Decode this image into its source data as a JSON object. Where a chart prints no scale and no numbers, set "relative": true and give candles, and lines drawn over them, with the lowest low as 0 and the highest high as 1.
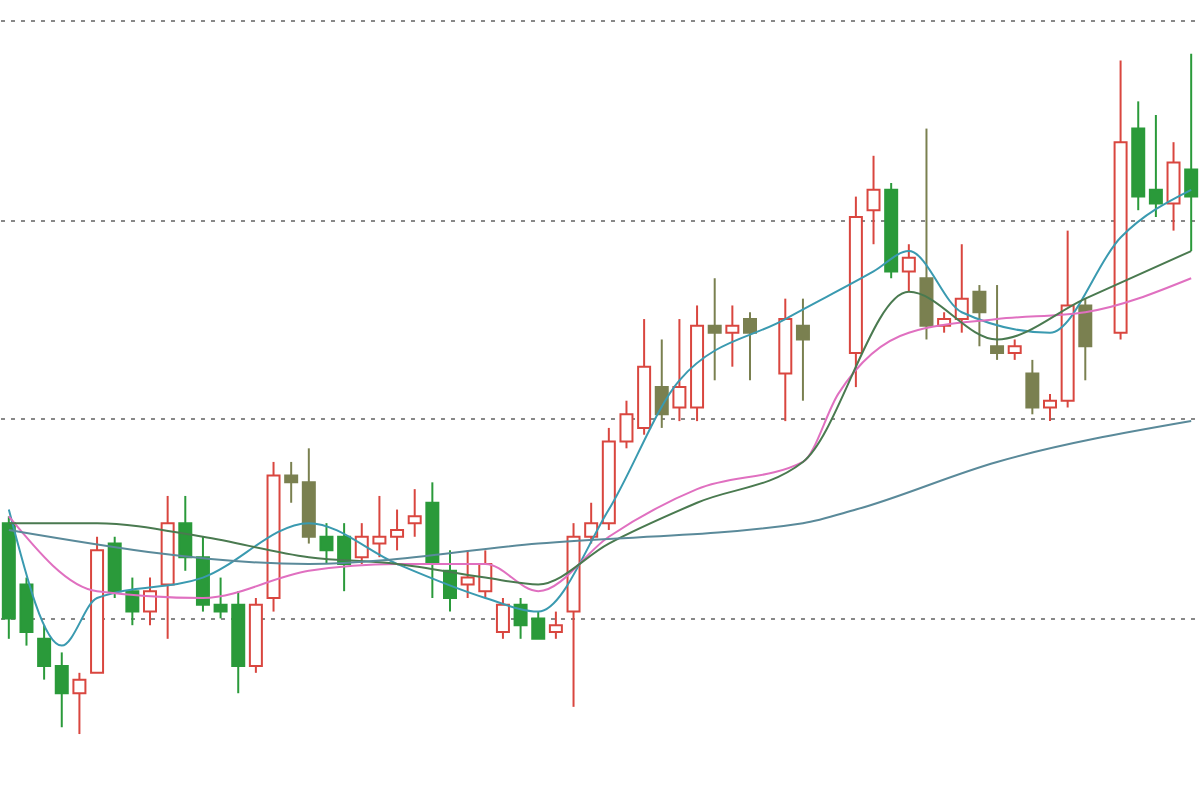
{
  "chart_data": {
    "type": "candlestick",
    "relative": true,
    "grid": "y",
    "categories": [
      null,
      null,
      null,
      null,
      null,
      null,
      null,
      null,
      null,
      null,
      null,
      null,
      null,
      null,
      null,
      null,
      null,
      null,
      null,
      null,
      null,
      null,
      null,
      null,
      null,
      null,
      null,
      null,
      null,
      null,
      null,
      null,
      null,
      null,
      null,
      null,
      null,
      null,
      null,
      null,
      null,
      null,
      null,
      null,
      null,
      null,
      null,
      null,
      null,
      null,
      null,
      null,
      null,
      null,
      null,
      null,
      null,
      null,
      null,
      null,
      null,
      null,
      null,
      null,
      null,
      null,
      null,
      null
    ],
    "ohlc": [
      [
        0.31,
        0.32,
        0.14,
        0.17
      ],
      [
        0.22,
        0.23,
        0.13,
        0.15
      ],
      [
        0.14,
        0.16,
        0.08,
        0.1
      ],
      [
        0.1,
        0.12,
        0.01,
        0.06
      ],
      [
        0.06,
        0.09,
        0,
        0.08
      ],
      [
        0.09,
        0.29,
        0.09,
        0.27
      ],
      [
        0.28,
        0.29,
        0.2,
        0.21
      ],
      [
        0.21,
        0.23,
        0.16,
        0.18
      ],
      [
        0.18,
        0.23,
        0.16,
        0.21
      ],
      [
        0.22,
        0.35,
        0.14,
        0.31
      ],
      [
        0.31,
        0.35,
        0.24,
        0.26
      ],
      [
        0.26,
        0.29,
        0.18,
        0.19
      ],
      [
        0.19,
        0.23,
        0.17,
        0.18
      ],
      [
        0.19,
        0.21,
        0.06,
        0.1
      ],
      [
        0.1,
        0.2,
        0.09,
        0.19
      ],
      [
        0.2,
        0.4,
        0.18,
        0.38
      ],
      [
        0.38,
        0.4,
        0.34,
        0.37
      ],
      [
        0.37,
        0.42,
        0.28,
        0.29
      ],
      [
        0.29,
        0.31,
        0.25,
        0.27
      ],
      [
        0.29,
        0.31,
        0.21,
        0.25
      ],
      [
        0.26,
        0.31,
        0.25,
        0.29
      ],
      [
        0.28,
        0.35,
        0.26,
        0.29
      ],
      [
        0.29,
        0.33,
        0.27,
        0.3
      ],
      [
        0.31,
        0.36,
        0.29,
        0.32
      ],
      [
        0.34,
        0.37,
        0.2,
        0.25
      ],
      [
        0.24,
        0.27,
        0.18,
        0.2
      ],
      [
        0.22,
        0.27,
        0.2,
        0.23
      ],
      [
        0.21,
        0.27,
        0.2,
        0.25
      ],
      [
        0.15,
        0.2,
        0.14,
        0.19
      ],
      [
        0.19,
        0.2,
        0.14,
        0.16
      ],
      [
        0.17,
        0.18,
        0.14,
        0.14
      ],
      [
        0.15,
        0.18,
        0.14,
        0.16
      ],
      [
        0.18,
        0.31,
        0.04,
        0.29
      ],
      [
        0.29,
        0.34,
        0.28,
        0.31
      ],
      [
        0.31,
        0.45,
        0.3,
        0.43
      ],
      [
        0.43,
        0.49,
        0.42,
        0.47
      ],
      [
        0.45,
        0.61,
        0.44,
        0.54
      ],
      [
        0.51,
        0.58,
        0.45,
        0.47
      ],
      [
        0.48,
        0.61,
        0.46,
        0.51
      ],
      [
        0.48,
        0.63,
        0.46,
        0.6
      ],
      [
        0.6,
        0.67,
        0.52,
        0.59
      ],
      [
        0.59,
        0.63,
        0.54,
        0.6
      ],
      [
        0.61,
        0.62,
        0.52,
        0.59
      ],
      null,
      [
        0.53,
        0.64,
        0.46,
        0.61
      ],
      [
        0.6,
        0.64,
        0.49,
        0.58
      ],
      null,
      null,
      [
        0.56,
        0.79,
        0.51,
        0.76
      ],
      [
        0.77,
        0.85,
        0.72,
        0.8
      ],
      [
        0.8,
        0.81,
        0.67,
        0.68
      ],
      [
        0.68,
        0.72,
        0.65,
        0.7
      ],
      [
        0.67,
        0.89,
        0.58,
        0.6
      ],
      [
        0.6,
        0.62,
        0.59,
        0.61
      ],
      [
        0.61,
        0.72,
        0.59,
        0.64
      ],
      [
        0.65,
        0.66,
        0.57,
        0.62
      ],
      [
        0.57,
        0.66,
        0.55,
        0.56
      ],
      [
        0.56,
        0.58,
        0.55,
        0.57
      ],
      [
        0.53,
        0.55,
        0.47,
        0.48
      ],
      [
        0.48,
        0.5,
        0.46,
        0.49
      ],
      [
        0.49,
        0.74,
        0.48,
        0.63
      ],
      [
        0.63,
        0.64,
        0.52,
        0.57
      ],
      null,
      [
        0.59,
        0.99,
        0.58,
        0.87
      ],
      [
        0.89,
        0.93,
        0.77,
        0.79
      ],
      [
        0.8,
        0.91,
        0.76,
        0.78
      ],
      [
        0.78,
        0.87,
        0.74,
        0.84
      ],
      [
        0.83,
        1,
        0.71,
        0.79
      ]
    ],
    "colors": [
      "#2a9a3a",
      "#2a9a3a",
      "#2a9a3a",
      "#2a9a3a",
      "#d9463f",
      "#d9463f",
      "#2a9a3a",
      "#2a9a3a",
      "#d9463f",
      "#d9463f",
      "#2a9a3a",
      "#2a9a3a",
      "#2a9a3a",
      "#2a9a3a",
      "#d9463f",
      "#d9463f",
      "#7a8050",
      "#7a8050",
      "#2a9a3a",
      "#2a9a3a",
      "#d9463f",
      "#d9463f",
      "#d9463f",
      "#d9463f",
      "#2a9a3a",
      "#2a9a3a",
      "#d9463f",
      "#d9463f",
      "#d9463f",
      "#2a9a3a",
      "#2a9a3a",
      "#d9463f",
      "#d9463f",
      "#d9463f",
      "#d9463f",
      "#d9463f",
      "#d9463f",
      "#7a8050",
      "#d9463f",
      "#d9463f",
      "#7a8050",
      "#d9463f",
      "#7a8050",
      null,
      "#d9463f",
      "#7a8050",
      null,
      null,
      "#d9463f",
      "#d9463f",
      "#2a9a3a",
      "#d9463f",
      "#7a8050",
      "#d9463f",
      "#d9463f",
      "#7a8050",
      "#7a8050",
      "#d9463f",
      "#7a8050",
      "#d9463f",
      "#d9463f",
      "#7a8050",
      null,
      "#d9463f",
      "#2a9a3a",
      "#2a9a3a",
      "#d9463f",
      "#2a9a3a"
    ],
    "series": [
      {
        "type": "line",
        "color": "#3a9ab0",
        "values": [
          0.33,
          null,
          null,
          0.13,
          null,
          0.2,
          null,
          null,
          null,
          null,
          null,
          0.23,
          null,
          null,
          null,
          null,
          null,
          0.31,
          null,
          null,
          null,
          null,
          0.25,
          null,
          null,
          null,
          null,
          0.2,
          null,
          null,
          0.18,
          null,
          null,
          null,
          0.33,
          null,
          null,
          null,
          0.52,
          null,
          null,
          null,
          null,
          null,
          0.61,
          null,
          null,
          null,
          null,
          0.68,
          null,
          0.71,
          null,
          null,
          0.62,
          null,
          null,
          null,
          null,
          0.59,
          null,
          null,
          null,
          0.73,
          null,
          null,
          null,
          0.8
        ]
      },
      {
        "type": "line",
        "color": "#e070c0",
        "values": [
          0.32,
          null,
          null,
          null,
          null,
          0.21,
          null,
          null,
          null,
          null,
          null,
          0.2,
          null,
          null,
          null,
          null,
          null,
          0.24,
          null,
          null,
          null,
          null,
          0.25,
          null,
          null,
          null,
          null,
          0.25,
          null,
          null,
          0.21,
          null,
          null,
          null,
          0.29,
          null,
          null,
          null,
          null,
          0.36,
          null,
          null,
          null,
          null,
          null,
          0.4,
          null,
          0.5,
          null,
          null,
          null,
          0.59,
          null,
          null,
          null,
          null,
          0.61,
          null,
          null,
          null,
          null,
          0.62,
          null,
          null,
          null,
          null,
          null,
          0.67
        ]
      },
      {
        "type": "line",
        "color": "#4a7a50",
        "values": [
          0.31,
          null,
          null,
          null,
          null,
          0.31,
          null,
          null,
          null,
          null,
          null,
          0.29,
          null,
          null,
          null,
          null,
          null,
          0.26,
          null,
          null,
          null,
          null,
          0.25,
          null,
          null,
          null,
          null,
          0.23,
          null,
          null,
          0.22,
          null,
          null,
          null,
          0.28,
          null,
          null,
          null,
          null,
          0.34,
          null,
          null,
          null,
          null,
          null,
          0.4,
          null,
          null,
          null,
          null,
          null,
          0.65,
          null,
          null,
          null,
          null,
          0.58,
          null,
          null,
          null,
          null,
          0.64,
          null,
          null,
          null,
          null,
          null,
          0.71
        ]
      },
      {
        "type": "line",
        "color": "#5a8a9a",
        "values": [
          0.3,
          null,
          null,
          null,
          null,
          null,
          null,
          null,
          null,
          null,
          null,
          null,
          null,
          null,
          null,
          null,
          null,
          0.25,
          null,
          null,
          null,
          null,
          null,
          null,
          null,
          null,
          null,
          null,
          null,
          null,
          0.28,
          null,
          null,
          null,
          null,
          null,
          null,
          null,
          null,
          null,
          null,
          null,
          null,
          null,
          null,
          0.31,
          null,
          null,
          0.33,
          null,
          null,
          null,
          null,
          null,
          null,
          null,
          0.4,
          null,
          null,
          null,
          null,
          null,
          null,
          null,
          null,
          null,
          null,
          0.46
        ]
      }
    ]
  }
}
